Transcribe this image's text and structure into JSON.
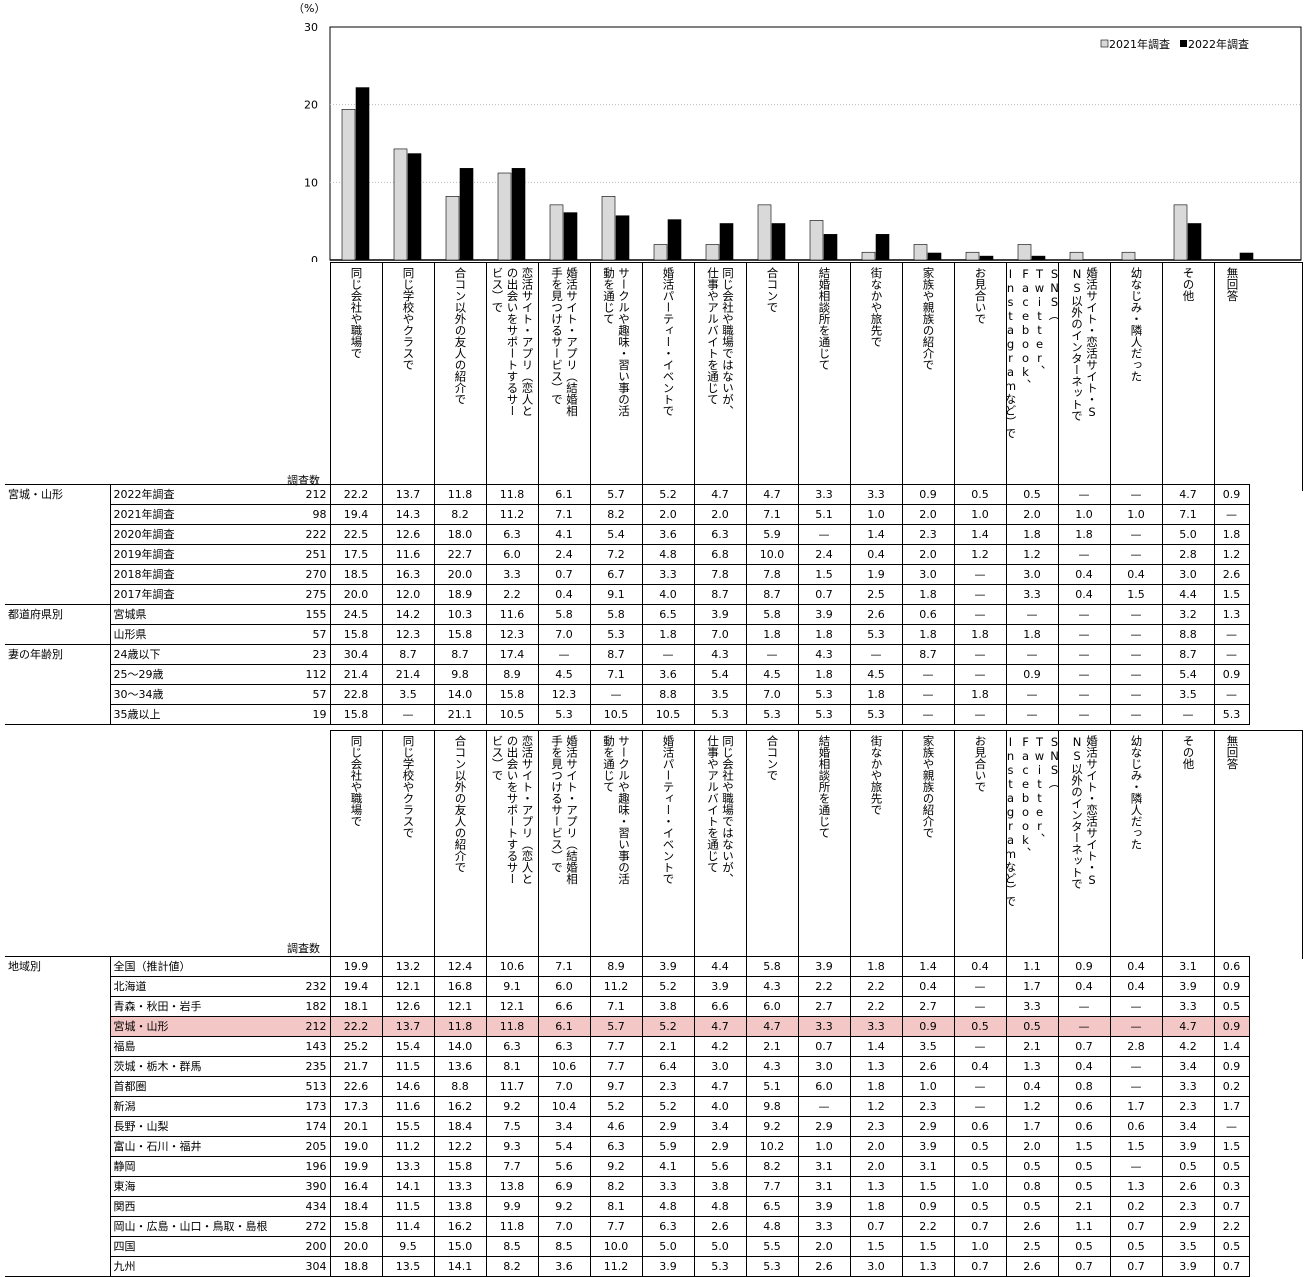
{
  "chart_data": {
    "type": "bar",
    "y_unit": "（%）",
    "ylim": [
      0,
      30
    ],
    "yticks": [
      0,
      10,
      20,
      30
    ],
    "grid": true,
    "legend_position": "top-right",
    "series": [
      {
        "name": "2021年調査",
        "color": "#d9d9d9",
        "values": [
          19.4,
          14.3,
          8.2,
          11.2,
          7.1,
          8.2,
          2.0,
          2.0,
          7.1,
          5.1,
          1.0,
          2.0,
          1.0,
          2.0,
          1.0,
          1.0,
          7.1,
          0
        ]
      },
      {
        "name": "2022年調査",
        "color": "#000000",
        "values": [
          22.2,
          13.7,
          11.8,
          11.8,
          6.1,
          5.7,
          5.2,
          4.7,
          4.7,
          3.3,
          3.3,
          0.9,
          0.5,
          0.5,
          0,
          0,
          4.7,
          0.9
        ]
      }
    ]
  },
  "categories": [
    [
      "同じ会社や職場で"
    ],
    [
      "同じ学校やクラスで"
    ],
    [
      "合コン以外の友人の紹介で"
    ],
    [
      "恋活サイト・アプリ（恋人と",
      "の出会いをサポートするサー",
      "ビス）で"
    ],
    [
      "婚活サイト・アプリ（結婚相",
      "手を見つけるサービス）で"
    ],
    [
      "サークルや趣味・習い事の活",
      "動を通じて"
    ],
    [
      "婚活パーティー・イベントで"
    ],
    [
      "同じ会社や職場ではないが、",
      "仕事やアルバイトを通じて"
    ],
    [
      "合コンで"
    ],
    [
      "結婚相談所を通じて"
    ],
    [
      "街なかや旅先で"
    ],
    [
      "家族や親族の紹介で"
    ],
    [
      "お見合いで"
    ],
    [
      "SNS（",
      "Twitter、Facebook、",
      "Instagramなど）で"
    ],
    [
      "婚活サイト・恋活サイト・S",
      "NS以外のインターネットで"
    ],
    [
      "幼なじみ・隣人だった"
    ],
    [
      "その他"
    ],
    [
      "無回答"
    ]
  ],
  "count_label": "調査数",
  "table1": [
    {
      "seg": "宮城・山形",
      "sub": "2022年調査",
      "n": "212",
      "v": [
        "22.2",
        "13.7",
        "11.8",
        "11.8",
        "6.1",
        "5.7",
        "5.2",
        "4.7",
        "4.7",
        "3.3",
        "3.3",
        "0.9",
        "0.5",
        "0.5",
        "—",
        "—",
        "4.7",
        "0.9"
      ],
      "grp": true
    },
    {
      "seg": "",
      "sub": "2021年調査",
      "n": "98",
      "v": [
        "19.4",
        "14.3",
        "8.2",
        "11.2",
        "7.1",
        "8.2",
        "2.0",
        "2.0",
        "7.1",
        "5.1",
        "1.0",
        "2.0",
        "1.0",
        "2.0",
        "1.0",
        "1.0",
        "7.1",
        "—"
      ]
    },
    {
      "seg": "",
      "sub": "2020年調査",
      "n": "222",
      "v": [
        "22.5",
        "12.6",
        "18.0",
        "6.3",
        "4.1",
        "5.4",
        "3.6",
        "6.3",
        "5.9",
        "—",
        "1.4",
        "2.3",
        "1.4",
        "1.8",
        "1.8",
        "—",
        "5.0",
        "1.8"
      ]
    },
    {
      "seg": "",
      "sub": "2019年調査",
      "n": "251",
      "v": [
        "17.5",
        "11.6",
        "22.7",
        "6.0",
        "2.4",
        "7.2",
        "4.8",
        "6.8",
        "10.0",
        "2.4",
        "0.4",
        "2.0",
        "1.2",
        "1.2",
        "—",
        "—",
        "2.8",
        "1.2"
      ]
    },
    {
      "seg": "",
      "sub": "2018年調査",
      "n": "270",
      "v": [
        "18.5",
        "16.3",
        "20.0",
        "3.3",
        "0.7",
        "6.7",
        "3.3",
        "7.8",
        "7.8",
        "1.5",
        "1.9",
        "3.0",
        "—",
        "3.0",
        "0.4",
        "0.4",
        "3.0",
        "2.6"
      ]
    },
    {
      "seg": "",
      "sub": "2017年調査",
      "n": "275",
      "v": [
        "20.0",
        "12.0",
        "18.9",
        "2.2",
        "0.4",
        "9.1",
        "4.0",
        "8.7",
        "8.7",
        "0.7",
        "2.5",
        "1.8",
        "—",
        "3.3",
        "0.4",
        "1.5",
        "4.4",
        "1.5"
      ]
    },
    {
      "seg": "都道府県別",
      "sub": "宮城県",
      "n": "155",
      "v": [
        "24.5",
        "14.2",
        "10.3",
        "11.6",
        "5.8",
        "5.8",
        "6.5",
        "3.9",
        "5.8",
        "3.9",
        "2.6",
        "0.6",
        "—",
        "—",
        "—",
        "—",
        "3.2",
        "1.3"
      ],
      "grp": true
    },
    {
      "seg": "",
      "sub": "山形県",
      "n": "57",
      "v": [
        "15.8",
        "12.3",
        "15.8",
        "12.3",
        "7.0",
        "5.3",
        "1.8",
        "7.0",
        "1.8",
        "1.8",
        "5.3",
        "1.8",
        "1.8",
        "1.8",
        "—",
        "—",
        "8.8",
        "—"
      ]
    },
    {
      "seg": "妻の年齢別",
      "sub": "24歳以下",
      "n": "23",
      "v": [
        "30.4",
        "8.7",
        "8.7",
        "17.4",
        "—",
        "8.7",
        "—",
        "4.3",
        "—",
        "4.3",
        "—",
        "8.7",
        "—",
        "—",
        "—",
        "—",
        "8.7",
        "—"
      ],
      "grp": true
    },
    {
      "seg": "",
      "sub": "25〜29歳",
      "n": "112",
      "v": [
        "21.4",
        "21.4",
        "9.8",
        "8.9",
        "4.5",
        "7.1",
        "3.6",
        "5.4",
        "4.5",
        "1.8",
        "4.5",
        "—",
        "—",
        "0.9",
        "—",
        "—",
        "5.4",
        "0.9"
      ]
    },
    {
      "seg": "",
      "sub": "30〜34歳",
      "n": "57",
      "v": [
        "22.8",
        "3.5",
        "14.0",
        "15.8",
        "12.3",
        "—",
        "8.8",
        "3.5",
        "7.0",
        "5.3",
        "1.8",
        "—",
        "1.8",
        "—",
        "—",
        "—",
        "3.5",
        "—"
      ]
    },
    {
      "seg": "",
      "sub": "35歳以上",
      "n": "19",
      "v": [
        "15.8",
        "—",
        "21.1",
        "10.5",
        "5.3",
        "10.5",
        "10.5",
        "5.3",
        "5.3",
        "5.3",
        "5.3",
        "—",
        "—",
        "—",
        "—",
        "—",
        "—",
        "5.3"
      ],
      "last": true
    }
  ],
  "table2": [
    {
      "seg": "地域別",
      "sub": "全国（推計値）",
      "n": "",
      "v": [
        "19.9",
        "13.2",
        "12.4",
        "10.6",
        "7.1",
        "8.9",
        "3.9",
        "4.4",
        "5.8",
        "3.9",
        "1.8",
        "1.4",
        "0.4",
        "1.1",
        "0.9",
        "0.4",
        "3.1",
        "0.6"
      ],
      "grp": true
    },
    {
      "seg": "",
      "sub": "北海道",
      "n": "232",
      "v": [
        "19.4",
        "12.1",
        "16.8",
        "9.1",
        "6.0",
        "11.2",
        "5.2",
        "3.9",
        "4.3",
        "2.2",
        "2.2",
        "0.4",
        "—",
        "1.7",
        "0.4",
        "0.4",
        "3.9",
        "0.9"
      ],
      "grp2": true
    },
    {
      "seg": "",
      "sub": "青森・秋田・岩手",
      "n": "182",
      "v": [
        "18.1",
        "12.6",
        "12.1",
        "12.1",
        "6.6",
        "7.1",
        "3.8",
        "6.6",
        "6.0",
        "2.7",
        "2.2",
        "2.7",
        "—",
        "3.3",
        "—",
        "—",
        "3.3",
        "0.5"
      ]
    },
    {
      "seg": "",
      "sub": "宮城・山形",
      "n": "212",
      "v": [
        "22.2",
        "13.7",
        "11.8",
        "11.8",
        "6.1",
        "5.7",
        "5.2",
        "4.7",
        "4.7",
        "3.3",
        "3.3",
        "0.9",
        "0.5",
        "0.5",
        "—",
        "—",
        "4.7",
        "0.9"
      ],
      "hl": true
    },
    {
      "seg": "",
      "sub": "福島",
      "n": "143",
      "v": [
        "25.2",
        "15.4",
        "14.0",
        "6.3",
        "6.3",
        "7.7",
        "2.1",
        "4.2",
        "2.1",
        "0.7",
        "1.4",
        "3.5",
        "—",
        "2.1",
        "0.7",
        "2.8",
        "4.2",
        "1.4"
      ]
    },
    {
      "seg": "",
      "sub": "茨城・栃木・群馬",
      "n": "235",
      "v": [
        "21.7",
        "11.5",
        "13.6",
        "8.1",
        "10.6",
        "7.7",
        "6.4",
        "3.0",
        "4.3",
        "3.0",
        "1.3",
        "2.6",
        "0.4",
        "1.3",
        "0.4",
        "—",
        "3.4",
        "0.9"
      ]
    },
    {
      "seg": "",
      "sub": "首都圏",
      "n": "513",
      "v": [
        "22.6",
        "14.6",
        "8.8",
        "11.7",
        "7.0",
        "9.7",
        "2.3",
        "4.7",
        "5.1",
        "6.0",
        "1.8",
        "1.0",
        "—",
        "0.4",
        "0.8",
        "—",
        "3.3",
        "0.2"
      ]
    },
    {
      "seg": "",
      "sub": "新潟",
      "n": "173",
      "v": [
        "17.3",
        "11.6",
        "16.2",
        "9.2",
        "10.4",
        "5.2",
        "5.2",
        "4.0",
        "9.8",
        "—",
        "1.2",
        "2.3",
        "—",
        "1.2",
        "0.6",
        "1.7",
        "2.3",
        "1.7"
      ]
    },
    {
      "seg": "",
      "sub": "長野・山梨",
      "n": "174",
      "v": [
        "20.1",
        "15.5",
        "18.4",
        "7.5",
        "3.4",
        "4.6",
        "2.9",
        "3.4",
        "9.2",
        "2.9",
        "2.3",
        "2.9",
        "0.6",
        "1.7",
        "0.6",
        "0.6",
        "3.4",
        "—"
      ]
    },
    {
      "seg": "",
      "sub": "富山・石川・福井",
      "n": "205",
      "v": [
        "19.0",
        "11.2",
        "12.2",
        "9.3",
        "5.4",
        "6.3",
        "5.9",
        "2.9",
        "10.2",
        "1.0",
        "2.0",
        "3.9",
        "0.5",
        "2.0",
        "1.5",
        "1.5",
        "3.9",
        "1.5"
      ]
    },
    {
      "seg": "",
      "sub": "静岡",
      "n": "196",
      "v": [
        "19.9",
        "13.3",
        "15.8",
        "7.7",
        "5.6",
        "9.2",
        "4.1",
        "5.6",
        "8.2",
        "3.1",
        "2.0",
        "3.1",
        "0.5",
        "0.5",
        "0.5",
        "—",
        "0.5",
        "0.5"
      ]
    },
    {
      "seg": "",
      "sub": "東海",
      "n": "390",
      "v": [
        "16.4",
        "14.1",
        "13.3",
        "13.8",
        "6.9",
        "8.2",
        "3.3",
        "3.8",
        "7.7",
        "3.1",
        "1.3",
        "1.5",
        "1.0",
        "0.8",
        "0.5",
        "1.3",
        "2.6",
        "0.3"
      ]
    },
    {
      "seg": "",
      "sub": "関西",
      "n": "434",
      "v": [
        "18.4",
        "11.5",
        "13.8",
        "9.9",
        "9.2",
        "8.1",
        "4.8",
        "4.8",
        "6.5",
        "3.9",
        "1.8",
        "0.9",
        "0.5",
        "0.5",
        "2.1",
        "0.2",
        "2.3",
        "0.7"
      ]
    },
    {
      "seg": "",
      "sub": "岡山・広島・山口・鳥取・島根",
      "n": "272",
      "v": [
        "15.8",
        "11.4",
        "16.2",
        "11.8",
        "7.0",
        "7.7",
        "6.3",
        "2.6",
        "4.8",
        "3.3",
        "0.7",
        "2.2",
        "0.7",
        "2.6",
        "1.1",
        "0.7",
        "2.9",
        "2.2"
      ]
    },
    {
      "seg": "",
      "sub": "四国",
      "n": "200",
      "v": [
        "20.0",
        "9.5",
        "15.0",
        "8.5",
        "8.5",
        "10.0",
        "5.0",
        "5.0",
        "5.5",
        "2.0",
        "1.5",
        "1.5",
        "1.0",
        "2.5",
        "0.5",
        "0.5",
        "3.5",
        "0.5"
      ]
    },
    {
      "seg": "",
      "sub": "九州",
      "n": "304",
      "v": [
        "18.8",
        "13.5",
        "14.1",
        "8.2",
        "3.6",
        "11.2",
        "3.9",
        "5.3",
        "5.3",
        "2.6",
        "3.0",
        "1.3",
        "0.7",
        "2.6",
        "0.7",
        "0.7",
        "3.9",
        "0.7"
      ],
      "last": true
    }
  ]
}
